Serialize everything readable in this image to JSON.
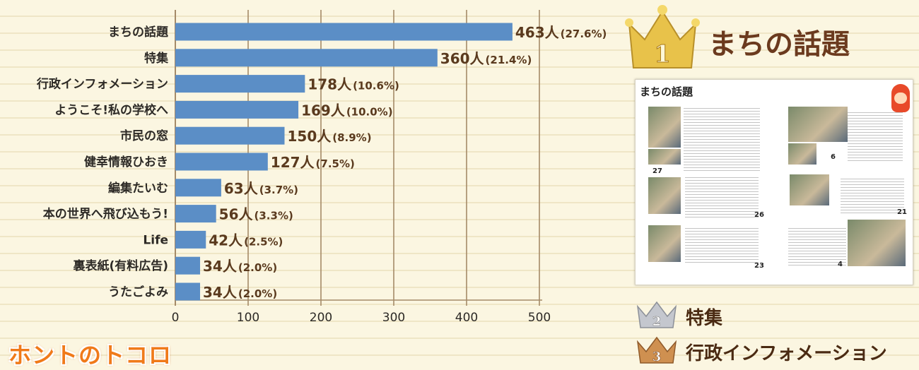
{
  "chart_data": {
    "type": "bar",
    "orientation": "horizontal",
    "categories": [
      "まちの話題",
      "特集",
      "行政インフォメーション",
      "ようこそ!私の学校へ",
      "市民の窓",
      "健幸情報ひおき",
      "編集たいむ",
      "本の世界へ飛び込もう!",
      "Life",
      "裏表紙(有料広告)",
      "うたごよみ"
    ],
    "values": [
      463,
      360,
      178,
      169,
      150,
      127,
      63,
      56,
      42,
      34,
      34
    ],
    "value_labels": [
      "463人",
      "360人",
      "178人",
      "169人",
      "150人",
      "127人",
      "63人",
      "56人",
      "42人",
      "34人",
      "34人"
    ],
    "percent_labels": [
      "(27.6%)",
      "(21.4%)",
      "(10.6%)",
      "(10.0%)",
      "(8.9%)",
      "(7.5%)",
      "(3.7%)",
      "(3.3%)",
      "(2.5%)",
      "(2.0%)",
      "(2.0%)"
    ],
    "xlim": [
      0,
      500
    ],
    "xticks": [
      "0",
      "100",
      "200",
      "300",
      "400",
      "500"
    ],
    "grid": true,
    "bar_color": "#5b8ec6"
  },
  "footer": {
    "title": "ホントのトコロ"
  },
  "ranking": {
    "first": {
      "rank": "1",
      "title": "まちの話題"
    },
    "second": {
      "rank": "2",
      "title": "特集"
    },
    "third": {
      "rank": "3",
      "title": "行政インフォメーション"
    }
  },
  "magazine": {
    "header": "まちの話題",
    "pages": [
      "27",
      "6",
      "26",
      "21",
      "23",
      "4"
    ]
  },
  "colors": {
    "gold": "#e0b83a",
    "silver": "#b9bcc4",
    "bronze": "#c88a4a",
    "grid": "#a58a68"
  }
}
